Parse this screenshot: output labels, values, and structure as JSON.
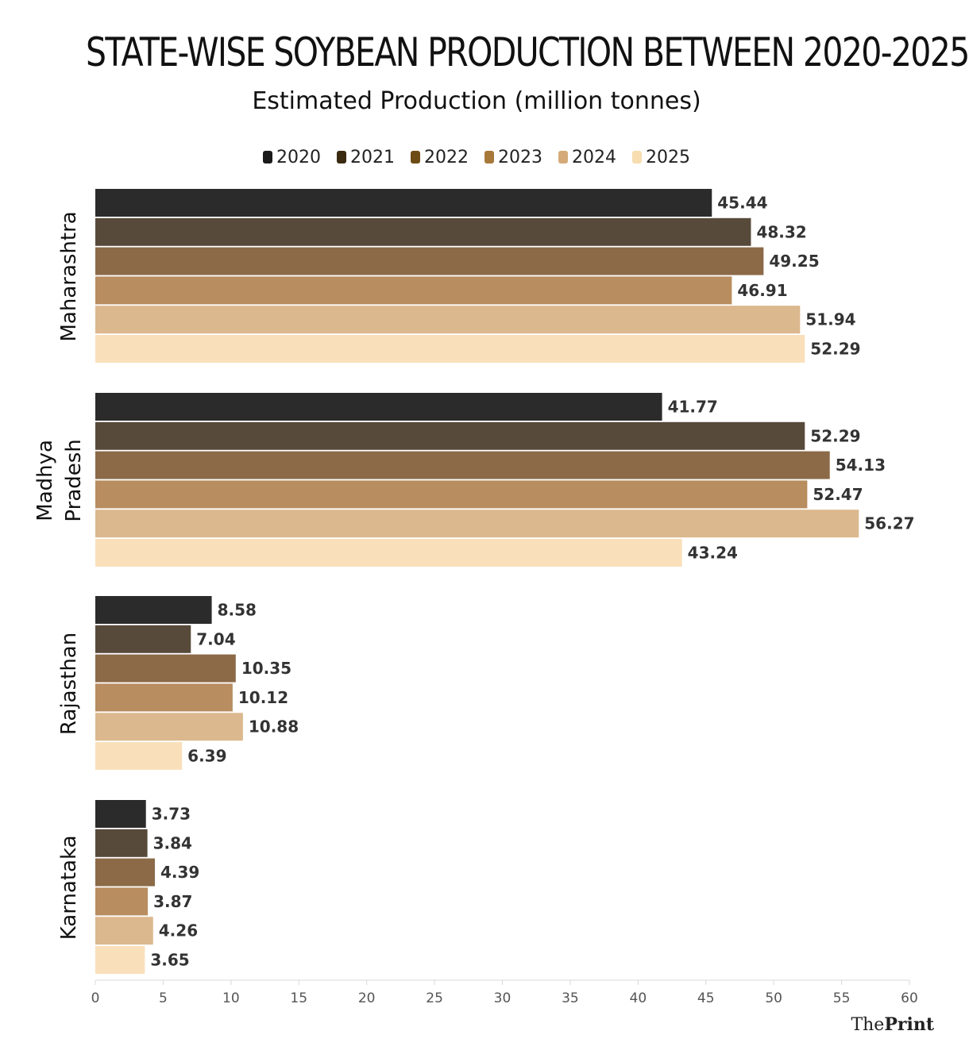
{
  "chart_data": {
    "type": "bar",
    "orientation": "horizontal",
    "title": "STATE-WISE SOYBEAN PRODUCTION BETWEEN 2020-2025",
    "subtitle": "Estimated Production (million tonnes)",
    "categories": [
      "Maharashtra",
      "Madhya Pradesh",
      "Rajasthan",
      "Karnataka"
    ],
    "series": [
      {
        "name": "2020",
        "color": "#2b2b2b",
        "legend_color": "#1a1a1a",
        "values": [
          45.44,
          41.77,
          8.58,
          3.73
        ]
      },
      {
        "name": "2021",
        "color": "#584a3a",
        "legend_color": "#3a2a10",
        "values": [
          48.32,
          52.29,
          7.04,
          3.84
        ]
      },
      {
        "name": "2022",
        "color": "#8c6a48",
        "legend_color": "#6e4a14",
        "values": [
          49.25,
          54.13,
          10.35,
          4.39
        ]
      },
      {
        "name": "2023",
        "color": "#b88d5f",
        "legend_color": "#a8783a",
        "values": [
          46.91,
          52.47,
          10.12,
          3.87
        ]
      },
      {
        "name": "2024",
        "color": "#dcb88e",
        "legend_color": "#d4ab78",
        "values": [
          51.94,
          56.27,
          10.88,
          4.26
        ]
      },
      {
        "name": "2025",
        "color": "#f9e0bb",
        "legend_color": "#f7ddb0",
        "values": [
          52.29,
          43.24,
          6.39,
          3.65
        ]
      }
    ],
    "xlim": [
      0,
      60
    ],
    "xticks": [
      0,
      5,
      10,
      15,
      20,
      25,
      30,
      35,
      40,
      45,
      50,
      55,
      60
    ],
    "data_labels": true,
    "grid": false,
    "legend_position": "top-center"
  },
  "brand": {
    "the": "The",
    "print": "Print"
  }
}
